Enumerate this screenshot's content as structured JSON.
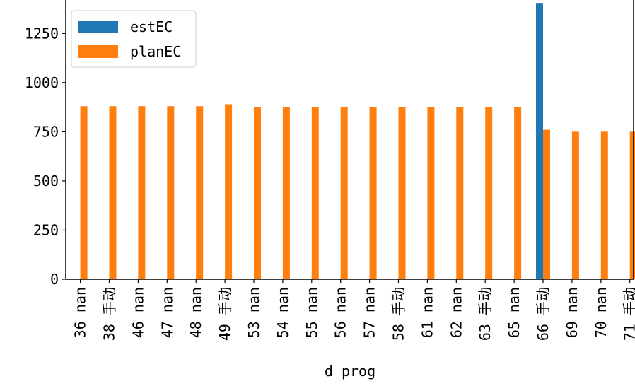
{
  "chart_data": {
    "type": "bar",
    "xlabel": "d prog",
    "ylabel": "",
    "ylim": [
      0,
      1420
    ],
    "yticks": [
      0,
      250,
      500,
      750,
      1000,
      1250
    ],
    "categories": [
      "36 nan",
      "38 手动",
      "46 nan",
      "47 nan",
      "48 nan",
      "49 手动",
      "53 nan",
      "54 nan",
      "55 nan",
      "56 nan",
      "57 nan",
      "58 手动",
      "61 nan",
      "62 nan",
      "63 手动",
      "65 nan",
      "66 手动",
      "69 nan",
      "70 nan",
      "71 手动"
    ],
    "series": [
      {
        "name": "estEC",
        "color": "#1f77b4",
        "values": [
          0,
          0,
          0,
          0,
          0,
          0,
          0,
          0,
          0,
          0,
          0,
          0,
          0,
          0,
          0,
          0,
          1405,
          0,
          0,
          0
        ]
      },
      {
        "name": "planEC",
        "color": "#ff7f0e",
        "values": [
          880,
          880,
          880,
          880,
          880,
          890,
          875,
          875,
          875,
          875,
          875,
          875,
          875,
          875,
          875,
          875,
          760,
          750,
          750,
          750
        ]
      }
    ],
    "legend": "top-left",
    "grid": false
  }
}
